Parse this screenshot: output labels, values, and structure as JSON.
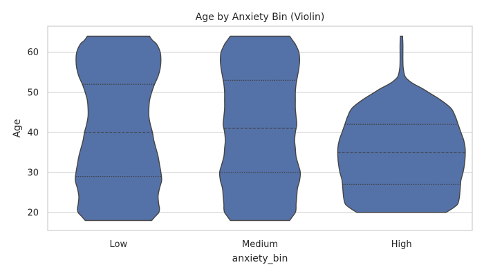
{
  "chart_data": {
    "type": "violin",
    "title": "Age by Anxiety Bin (Violin)",
    "xlabel": "anxiety_bin",
    "ylabel": "Age",
    "categories": [
      "Low",
      "Medium",
      "High"
    ],
    "ylim": [
      15.5,
      66.5
    ],
    "yticks": [
      20,
      30,
      40,
      50,
      60
    ],
    "grid": true,
    "color": "#5572a8",
    "violins": [
      {
        "category": "Low",
        "min": 18,
        "max": 64,
        "quartiles": [
          29,
          40,
          52
        ],
        "profile": [
          [
            18,
            0.47
          ],
          [
            19,
            0.52
          ],
          [
            20,
            0.57
          ],
          [
            21,
            0.58
          ],
          [
            22,
            0.57
          ],
          [
            24,
            0.56
          ],
          [
            26,
            0.58
          ],
          [
            28,
            0.61
          ],
          [
            30,
            0.6
          ],
          [
            32,
            0.58
          ],
          [
            34,
            0.56
          ],
          [
            36,
            0.53
          ],
          [
            38,
            0.5
          ],
          [
            40,
            0.48
          ],
          [
            42,
            0.45
          ],
          [
            44,
            0.43
          ],
          [
            46,
            0.43
          ],
          [
            48,
            0.44
          ],
          [
            50,
            0.47
          ],
          [
            52,
            0.51
          ],
          [
            54,
            0.56
          ],
          [
            56,
            0.59
          ],
          [
            58,
            0.6
          ],
          [
            60,
            0.59
          ],
          [
            62,
            0.54
          ],
          [
            63,
            0.48
          ],
          [
            64,
            0.44
          ]
        ]
      },
      {
        "category": "Medium",
        "min": 18,
        "max": 64,
        "quartiles": [
          30,
          41,
          53
        ],
        "profile": [
          [
            18,
            0.42
          ],
          [
            19,
            0.46
          ],
          [
            20,
            0.5
          ],
          [
            21,
            0.51
          ],
          [
            22,
            0.51
          ],
          [
            24,
            0.52
          ],
          [
            26,
            0.53
          ],
          [
            28,
            0.56
          ],
          [
            30,
            0.57
          ],
          [
            32,
            0.54
          ],
          [
            34,
            0.51
          ],
          [
            36,
            0.5
          ],
          [
            38,
            0.49
          ],
          [
            40,
            0.5
          ],
          [
            42,
            0.52
          ],
          [
            44,
            0.51
          ],
          [
            46,
            0.5
          ],
          [
            48,
            0.5
          ],
          [
            50,
            0.5
          ],
          [
            52,
            0.51
          ],
          [
            54,
            0.53
          ],
          [
            56,
            0.55
          ],
          [
            58,
            0.56
          ],
          [
            60,
            0.55
          ],
          [
            62,
            0.5
          ],
          [
            63,
            0.46
          ],
          [
            64,
            0.42
          ]
        ]
      },
      {
        "category": "High",
        "min": 20,
        "max": 64,
        "quartiles": [
          27,
          35,
          42
        ],
        "profile": [
          [
            20,
            0.63
          ],
          [
            21,
            0.72
          ],
          [
            22,
            0.79
          ],
          [
            23,
            0.81
          ],
          [
            24,
            0.82
          ],
          [
            26,
            0.83
          ],
          [
            28,
            0.84
          ],
          [
            30,
            0.87
          ],
          [
            32,
            0.89
          ],
          [
            34,
            0.9
          ],
          [
            36,
            0.9
          ],
          [
            38,
            0.88
          ],
          [
            40,
            0.84
          ],
          [
            42,
            0.8
          ],
          [
            44,
            0.76
          ],
          [
            46,
            0.7
          ],
          [
            48,
            0.56
          ],
          [
            50,
            0.38
          ],
          [
            51,
            0.29
          ],
          [
            52,
            0.18
          ],
          [
            53,
            0.1
          ],
          [
            54,
            0.05
          ],
          [
            56,
            0.025
          ],
          [
            58,
            0.02
          ],
          [
            60,
            0.02
          ],
          [
            62,
            0.02
          ],
          [
            64,
            0.015
          ]
        ]
      }
    ]
  }
}
